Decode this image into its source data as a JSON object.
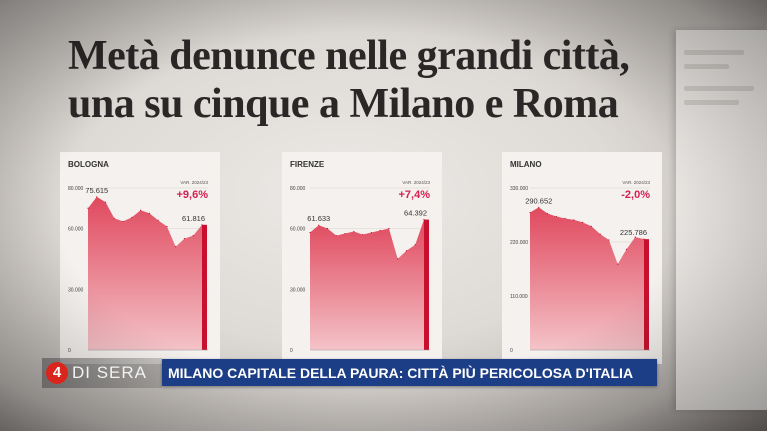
{
  "headline": {
    "line1": "Metà denunce nelle grandi città,",
    "line2": "una su cinque a Milano e Roma"
  },
  "colors": {
    "positive": "#d61f4f",
    "negative": "#d61f4f",
    "bar_fill": "#e55a6a",
    "last_bar": "#c8102e",
    "strap": "#1c3e86",
    "logo_circle": "#d9251c"
  },
  "chart_data": [
    {
      "type": "area",
      "city": "BOLOGNA",
      "variation_label": "VAR. 2024/23",
      "variation": "+9,6%",
      "y_ticks": [
        "80.000",
        "60.000",
        "30.000",
        "0"
      ],
      "ylim": [
        0,
        80000
      ],
      "peak_label": "75.615",
      "last_label": "61.816",
      "values": [
        70000,
        75615,
        73000,
        65000,
        63500,
        65500,
        69000,
        67500,
        64000,
        61000,
        51000,
        55000,
        56500,
        61816
      ]
    },
    {
      "type": "area",
      "city": "FIRENZE",
      "variation_label": "VAR. 2024/23",
      "variation": "+7,4%",
      "y_ticks": [
        "80.000",
        "60.000",
        "30.000",
        "0"
      ],
      "ylim": [
        0,
        80000
      ],
      "peak_label": "61.633",
      "last_label": "64.392",
      "values": [
        58000,
        61633,
        60000,
        56500,
        57500,
        58500,
        57000,
        58000,
        59000,
        60000,
        45000,
        49000,
        52000,
        64392
      ]
    },
    {
      "type": "area",
      "city": "MILANO",
      "variation_label": "VAR. 2024/23",
      "variation": "-2,0%",
      "y_ticks": [
        "330.000",
        "220.000",
        "110.000",
        "0"
      ],
      "ylim": [
        0,
        330000
      ],
      "peak_label": "290.652",
      "last_label": "225.786",
      "values": [
        280000,
        290652,
        278000,
        272000,
        268000,
        265000,
        260000,
        252000,
        236000,
        224000,
        175000,
        205000,
        230000,
        225786
      ]
    }
  ],
  "ticker": {
    "logo_number": "4",
    "logo_text": "DI SERA",
    "strap_text": "MILANO CAPITALE DELLA PAURA: CITTÀ PIÙ PERICOLOSA D'ITALIA"
  }
}
